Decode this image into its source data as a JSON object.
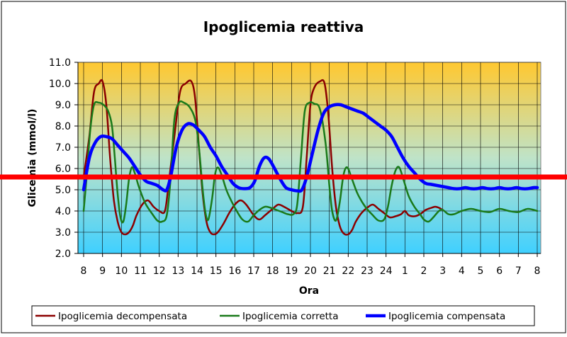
{
  "chart_data": {
    "type": "line",
    "title": "Ipoglicemia reattiva",
    "xlabel": "Ora",
    "ylabel": "Glicemia (mmol/l)",
    "ylim": [
      2.0,
      11.0
    ],
    "ytick_step": 1.0,
    "yticks": [
      "2.0",
      "3.0",
      "4.0",
      "5.0",
      "6.0",
      "7.0",
      "8.0",
      "9.0",
      "10.0",
      "11.0"
    ],
    "xlim": [
      0,
      24
    ],
    "xticks": [
      "8",
      "9",
      "10",
      "11",
      "12",
      "13",
      "14",
      "15",
      "16",
      "17",
      "18",
      "19",
      "20",
      "21",
      "22",
      "23",
      "24",
      "1",
      "2",
      "3",
      "4",
      "5",
      "6",
      "7",
      "8"
    ],
    "grid": true,
    "legend_position": "bottom",
    "threshold": {
      "value": 5.6,
      "color": "#ff0000"
    },
    "background": {
      "top_color": "#ffc830",
      "bottom_color": "#3fd0ff"
    },
    "series": [
      {
        "name": "Ipoglicemia decompensata",
        "color": "#8b0000",
        "width": 2.5,
        "points": [
          [
            0,
            5.6
          ],
          [
            0.3,
            7.5
          ],
          [
            0.55,
            9.6
          ],
          [
            0.8,
            10.0
          ],
          [
            1.0,
            10.1
          ],
          [
            1.2,
            9.0
          ],
          [
            1.4,
            6.5
          ],
          [
            1.6,
            4.5
          ],
          [
            1.8,
            3.5
          ],
          [
            2.0,
            3.0
          ],
          [
            2.2,
            2.9
          ],
          [
            2.4,
            3.0
          ],
          [
            2.6,
            3.3
          ],
          [
            2.8,
            3.8
          ],
          [
            3.1,
            4.3
          ],
          [
            3.4,
            4.5
          ],
          [
            3.7,
            4.2
          ],
          [
            4.0,
            4.0
          ],
          [
            4.3,
            4.0
          ],
          [
            4.5,
            5.3
          ],
          [
            4.8,
            7.5
          ],
          [
            5.1,
            9.6
          ],
          [
            5.4,
            10.0
          ],
          [
            5.7,
            10.1
          ],
          [
            5.9,
            9.3
          ],
          [
            6.1,
            7.0
          ],
          [
            6.3,
            4.8
          ],
          [
            6.5,
            3.5
          ],
          [
            6.7,
            3.0
          ],
          [
            6.9,
            2.9
          ],
          [
            7.1,
            3.0
          ],
          [
            7.4,
            3.4
          ],
          [
            7.7,
            3.9
          ],
          [
            8.0,
            4.3
          ],
          [
            8.3,
            4.5
          ],
          [
            8.6,
            4.3
          ],
          [
            9.0,
            3.8
          ],
          [
            9.3,
            3.6
          ],
          [
            9.6,
            3.8
          ],
          [
            10.0,
            4.1
          ],
          [
            10.3,
            4.3
          ],
          [
            10.6,
            4.2
          ],
          [
            11.0,
            4.0
          ],
          [
            11.3,
            3.9
          ],
          [
            11.6,
            4.2
          ],
          [
            11.8,
            6.5
          ],
          [
            12.0,
            9.0
          ],
          [
            12.2,
            9.8
          ],
          [
            12.5,
            10.1
          ],
          [
            12.75,
            10.0
          ],
          [
            12.95,
            8.5
          ],
          [
            13.15,
            6.0
          ],
          [
            13.35,
            4.2
          ],
          [
            13.55,
            3.3
          ],
          [
            13.75,
            2.95
          ],
          [
            14.0,
            2.9
          ],
          [
            14.2,
            3.1
          ],
          [
            14.4,
            3.5
          ],
          [
            14.7,
            3.9
          ],
          [
            15.0,
            4.15
          ],
          [
            15.3,
            4.3
          ],
          [
            15.6,
            4.1
          ],
          [
            15.9,
            3.9
          ],
          [
            16.2,
            3.7
          ],
          [
            16.5,
            3.75
          ],
          [
            16.8,
            3.85
          ],
          [
            17.0,
            4.0
          ],
          [
            17.2,
            3.8
          ],
          [
            17.5,
            3.75
          ],
          [
            17.8,
            3.85
          ],
          [
            18.1,
            4.05
          ],
          [
            18.4,
            4.15
          ],
          [
            18.6,
            4.2
          ],
          [
            18.8,
            4.15
          ],
          [
            19.0,
            4.05
          ]
        ]
      },
      {
        "name": "Ipoglicemia corretta",
        "color": "#1a7a1a",
        "width": 2.5,
        "points": [
          [
            0,
            4.0
          ],
          [
            0.15,
            5.5
          ],
          [
            0.35,
            7.8
          ],
          [
            0.55,
            9.0
          ],
          [
            0.8,
            9.1
          ],
          [
            1.05,
            9.0
          ],
          [
            1.3,
            8.7
          ],
          [
            1.5,
            8.0
          ],
          [
            1.65,
            6.5
          ],
          [
            1.8,
            4.8
          ],
          [
            1.95,
            3.7
          ],
          [
            2.1,
            3.5
          ],
          [
            2.25,
            4.3
          ],
          [
            2.4,
            5.5
          ],
          [
            2.55,
            6.05
          ],
          [
            2.7,
            5.8
          ],
          [
            2.9,
            5.2
          ],
          [
            3.1,
            4.7
          ],
          [
            3.3,
            4.3
          ],
          [
            3.6,
            3.9
          ],
          [
            3.9,
            3.55
          ],
          [
            4.15,
            3.5
          ],
          [
            4.4,
            3.8
          ],
          [
            4.6,
            5.5
          ],
          [
            4.8,
            8.3
          ],
          [
            5.05,
            9.1
          ],
          [
            5.3,
            9.1
          ],
          [
            5.6,
            8.9
          ],
          [
            5.9,
            8.3
          ],
          [
            6.1,
            7.0
          ],
          [
            6.3,
            5.0
          ],
          [
            6.45,
            3.9
          ],
          [
            6.6,
            3.6
          ],
          [
            6.8,
            4.6
          ],
          [
            6.95,
            5.7
          ],
          [
            7.1,
            6.05
          ],
          [
            7.3,
            5.7
          ],
          [
            7.55,
            5.0
          ],
          [
            7.8,
            4.5
          ],
          [
            8.1,
            4.0
          ],
          [
            8.4,
            3.6
          ],
          [
            8.7,
            3.5
          ],
          [
            9.0,
            3.8
          ],
          [
            9.3,
            4.05
          ],
          [
            9.6,
            4.2
          ],
          [
            9.9,
            4.15
          ],
          [
            10.2,
            4.05
          ],
          [
            10.5,
            3.95
          ],
          [
            10.8,
            3.85
          ],
          [
            11.1,
            3.85
          ],
          [
            11.3,
            4.3
          ],
          [
            11.5,
            6.5
          ],
          [
            11.7,
            8.7
          ],
          [
            11.95,
            9.1
          ],
          [
            12.2,
            9.05
          ],
          [
            12.5,
            8.8
          ],
          [
            12.8,
            7.2
          ],
          [
            13.0,
            5.2
          ],
          [
            13.15,
            4.0
          ],
          [
            13.35,
            3.55
          ],
          [
            13.55,
            4.4
          ],
          [
            13.75,
            5.7
          ],
          [
            13.95,
            6.05
          ],
          [
            14.2,
            5.5
          ],
          [
            14.5,
            4.8
          ],
          [
            14.9,
            4.2
          ],
          [
            15.3,
            3.8
          ],
          [
            15.6,
            3.55
          ],
          [
            15.9,
            3.6
          ],
          [
            16.1,
            4.2
          ],
          [
            16.3,
            5.2
          ],
          [
            16.5,
            5.9
          ],
          [
            16.7,
            6.05
          ],
          [
            16.95,
            5.4
          ],
          [
            17.2,
            4.7
          ],
          [
            17.5,
            4.2
          ],
          [
            17.8,
            3.85
          ],
          [
            18.0,
            3.6
          ],
          [
            18.25,
            3.5
          ],
          [
            18.5,
            3.7
          ],
          [
            18.8,
            4.0
          ],
          [
            19.0,
            4.05
          ],
          [
            19.3,
            3.85
          ],
          [
            19.6,
            3.85
          ],
          [
            20.0,
            4.0
          ],
          [
            20.5,
            4.1
          ],
          [
            21.0,
            4.0
          ],
          [
            21.5,
            3.95
          ],
          [
            22.0,
            4.1
          ],
          [
            22.5,
            4.0
          ],
          [
            23.0,
            3.95
          ],
          [
            23.5,
            4.1
          ],
          [
            24.0,
            4.0
          ]
        ]
      },
      {
        "name": "Ipoglicemia compensata",
        "color": "#0000ff",
        "width": 4.5,
        "points": [
          [
            0,
            5.0
          ],
          [
            0.3,
            6.5
          ],
          [
            0.6,
            7.2
          ],
          [
            0.9,
            7.5
          ],
          [
            1.2,
            7.5
          ],
          [
            1.5,
            7.4
          ],
          [
            1.8,
            7.1
          ],
          [
            2.1,
            6.8
          ],
          [
            2.4,
            6.5
          ],
          [
            2.7,
            6.1
          ],
          [
            3.0,
            5.7
          ],
          [
            3.3,
            5.4
          ],
          [
            3.6,
            5.3
          ],
          [
            3.9,
            5.2
          ],
          [
            4.2,
            5.0
          ],
          [
            4.4,
            5.0
          ],
          [
            4.6,
            5.6
          ],
          [
            4.9,
            7.0
          ],
          [
            5.2,
            7.8
          ],
          [
            5.5,
            8.1
          ],
          [
            5.8,
            8.05
          ],
          [
            6.1,
            7.8
          ],
          [
            6.4,
            7.5
          ],
          [
            6.7,
            7.0
          ],
          [
            7.0,
            6.6
          ],
          [
            7.3,
            6.1
          ],
          [
            7.6,
            5.7
          ],
          [
            7.9,
            5.3
          ],
          [
            8.2,
            5.1
          ],
          [
            8.5,
            5.05
          ],
          [
            8.8,
            5.1
          ],
          [
            9.05,
            5.4
          ],
          [
            9.3,
            6.1
          ],
          [
            9.55,
            6.5
          ],
          [
            9.8,
            6.45
          ],
          [
            10.1,
            6.0
          ],
          [
            10.4,
            5.5
          ],
          [
            10.7,
            5.1
          ],
          [
            11.0,
            5.0
          ],
          [
            11.3,
            4.95
          ],
          [
            11.55,
            5.0
          ],
          [
            11.8,
            5.6
          ],
          [
            12.1,
            6.7
          ],
          [
            12.4,
            7.8
          ],
          [
            12.7,
            8.6
          ],
          [
            13.0,
            8.9
          ],
          [
            13.3,
            9.0
          ],
          [
            13.6,
            9.0
          ],
          [
            13.9,
            8.9
          ],
          [
            14.2,
            8.8
          ],
          [
            14.5,
            8.7
          ],
          [
            14.8,
            8.6
          ],
          [
            15.1,
            8.4
          ],
          [
            15.4,
            8.2
          ],
          [
            15.7,
            8.0
          ],
          [
            16.0,
            7.8
          ],
          [
            16.3,
            7.5
          ],
          [
            16.6,
            7.0
          ],
          [
            16.9,
            6.5
          ],
          [
            17.2,
            6.1
          ],
          [
            17.5,
            5.8
          ],
          [
            17.8,
            5.5
          ],
          [
            18.1,
            5.3
          ],
          [
            18.4,
            5.25
          ],
          [
            18.7,
            5.2
          ],
          [
            19.0,
            5.15
          ],
          [
            19.3,
            5.1
          ],
          [
            19.6,
            5.05
          ],
          [
            19.9,
            5.05
          ],
          [
            20.2,
            5.1
          ],
          [
            20.5,
            5.05
          ],
          [
            20.8,
            5.05
          ],
          [
            21.1,
            5.1
          ],
          [
            21.4,
            5.05
          ],
          [
            21.7,
            5.05
          ],
          [
            22.0,
            5.1
          ],
          [
            22.3,
            5.05
          ],
          [
            22.6,
            5.05
          ],
          [
            22.9,
            5.1
          ],
          [
            23.2,
            5.05
          ],
          [
            23.5,
            5.05
          ],
          [
            23.8,
            5.1
          ],
          [
            24.0,
            5.1
          ]
        ]
      }
    ]
  }
}
